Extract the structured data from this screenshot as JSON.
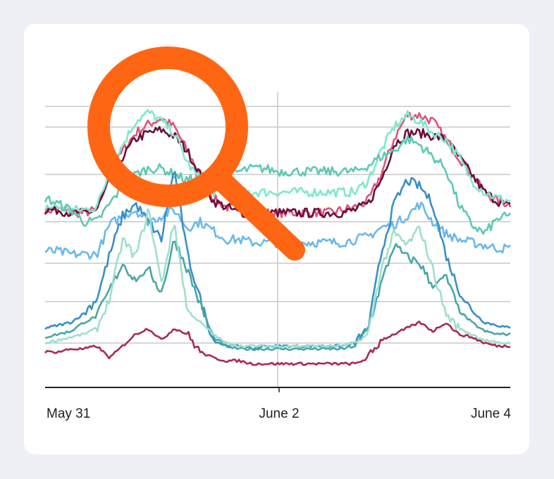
{
  "colors": {
    "page_background": "#eef0f5",
    "card_background": "#ffffff",
    "gridline": "#c8c8c8",
    "axis": "#222222",
    "magnifier": "#ff6614"
  },
  "icons": {
    "overlay": "magnifying-glass-icon"
  },
  "chart_data": {
    "type": "line",
    "title": "",
    "xlabel": "",
    "ylabel": "",
    "x_ticks": [
      "May 31",
      "June 2",
      "June 4"
    ],
    "x_range_days": [
      0,
      4
    ],
    "ylim": [
      0,
      100
    ],
    "y_gridlines": [
      15,
      29,
      42,
      56,
      72,
      88,
      95
    ],
    "vertical_gridline_at": "June 2",
    "series": [
      {
        "color": "#e0537a",
        "values": [
          60,
          60,
          59,
          59,
          60,
          72,
          80,
          86,
          89,
          91,
          88,
          80,
          72,
          64,
          61,
          60,
          60,
          59,
          59,
          59,
          59,
          59,
          59,
          60,
          61,
          63,
          72,
          84,
          92,
          92,
          90,
          84,
          78,
          72,
          66,
          63,
          62
        ]
      },
      {
        "color": "#6a0f3c",
        "values": [
          60,
          60,
          59,
          59,
          60,
          70,
          78,
          84,
          86,
          87,
          85,
          80,
          72,
          63,
          61,
          59,
          59,
          59,
          59,
          59,
          59,
          59,
          59,
          59,
          60,
          62,
          70,
          82,
          86,
          86,
          85,
          84,
          78,
          72,
          66,
          63,
          61
        ]
      },
      {
        "color": "#7ee8cc",
        "values": [
          61,
          61,
          60,
          60,
          61,
          73,
          82,
          90,
          93,
          90,
          86,
          76,
          70,
          66,
          66,
          66,
          66,
          66,
          66,
          66,
          66,
          66,
          66,
          66,
          66,
          70,
          80,
          88,
          92,
          90,
          86,
          84,
          78,
          70,
          66,
          64,
          63
        ]
      },
      {
        "color": "#6bb8ea",
        "values": [
          46,
          46,
          45,
          45,
          45,
          55,
          58,
          60,
          56,
          58,
          60,
          54,
          56,
          53,
          50,
          50,
          49,
          49,
          49,
          49,
          49,
          49,
          49,
          49,
          50,
          51,
          54,
          55,
          58,
          62,
          56,
          52,
          50,
          49,
          48,
          47,
          47
        ]
      },
      {
        "color": "#5ec8b4",
        "values": [
          64,
          62,
          60,
          56,
          56,
          62,
          68,
          72,
          74,
          74,
          72,
          70,
          71,
          72,
          72,
          73,
          74,
          74,
          73,
          73,
          73,
          73,
          73,
          73,
          73,
          75,
          78,
          80,
          84,
          82,
          78,
          74,
          62,
          55,
          52,
          57,
          58
        ]
      },
      {
        "color": "#3a8fc8",
        "values": [
          20,
          21,
          22,
          25,
          30,
          45,
          58,
          62,
          56,
          50,
          74,
          45,
          30,
          16,
          14,
          14,
          13,
          14,
          14,
          14,
          14,
          14,
          14,
          14,
          15,
          20,
          45,
          62,
          70,
          68,
          62,
          45,
          33,
          26,
          22,
          21,
          20
        ]
      },
      {
        "color": "#4aa6a6",
        "values": [
          17,
          18,
          19,
          22,
          24,
          33,
          42,
          36,
          40,
          32,
          50,
          40,
          28,
          17,
          14,
          13,
          13,
          13,
          13,
          13,
          13,
          13,
          13,
          13,
          14,
          20,
          35,
          48,
          44,
          42,
          34,
          38,
          26,
          22,
          19,
          18,
          18
        ]
      },
      {
        "color": "#9ee0cc",
        "values": [
          15,
          16,
          17,
          18,
          20,
          30,
          50,
          44,
          60,
          35,
          56,
          26,
          22,
          18,
          15,
          14,
          14,
          14,
          14,
          14,
          14,
          14,
          14,
          14,
          15,
          18,
          40,
          52,
          48,
          54,
          40,
          25,
          20,
          18,
          16,
          15,
          15
        ]
      },
      {
        "color": "#a8285a",
        "values": [
          12,
          12,
          13,
          13,
          14,
          10,
          14,
          18,
          20,
          16,
          20,
          18,
          12,
          10,
          9,
          9,
          8,
          8,
          8,
          8,
          8,
          8,
          8,
          8,
          8,
          10,
          16,
          18,
          20,
          22,
          19,
          22,
          18,
          17,
          15,
          14,
          14
        ]
      }
    ]
  }
}
